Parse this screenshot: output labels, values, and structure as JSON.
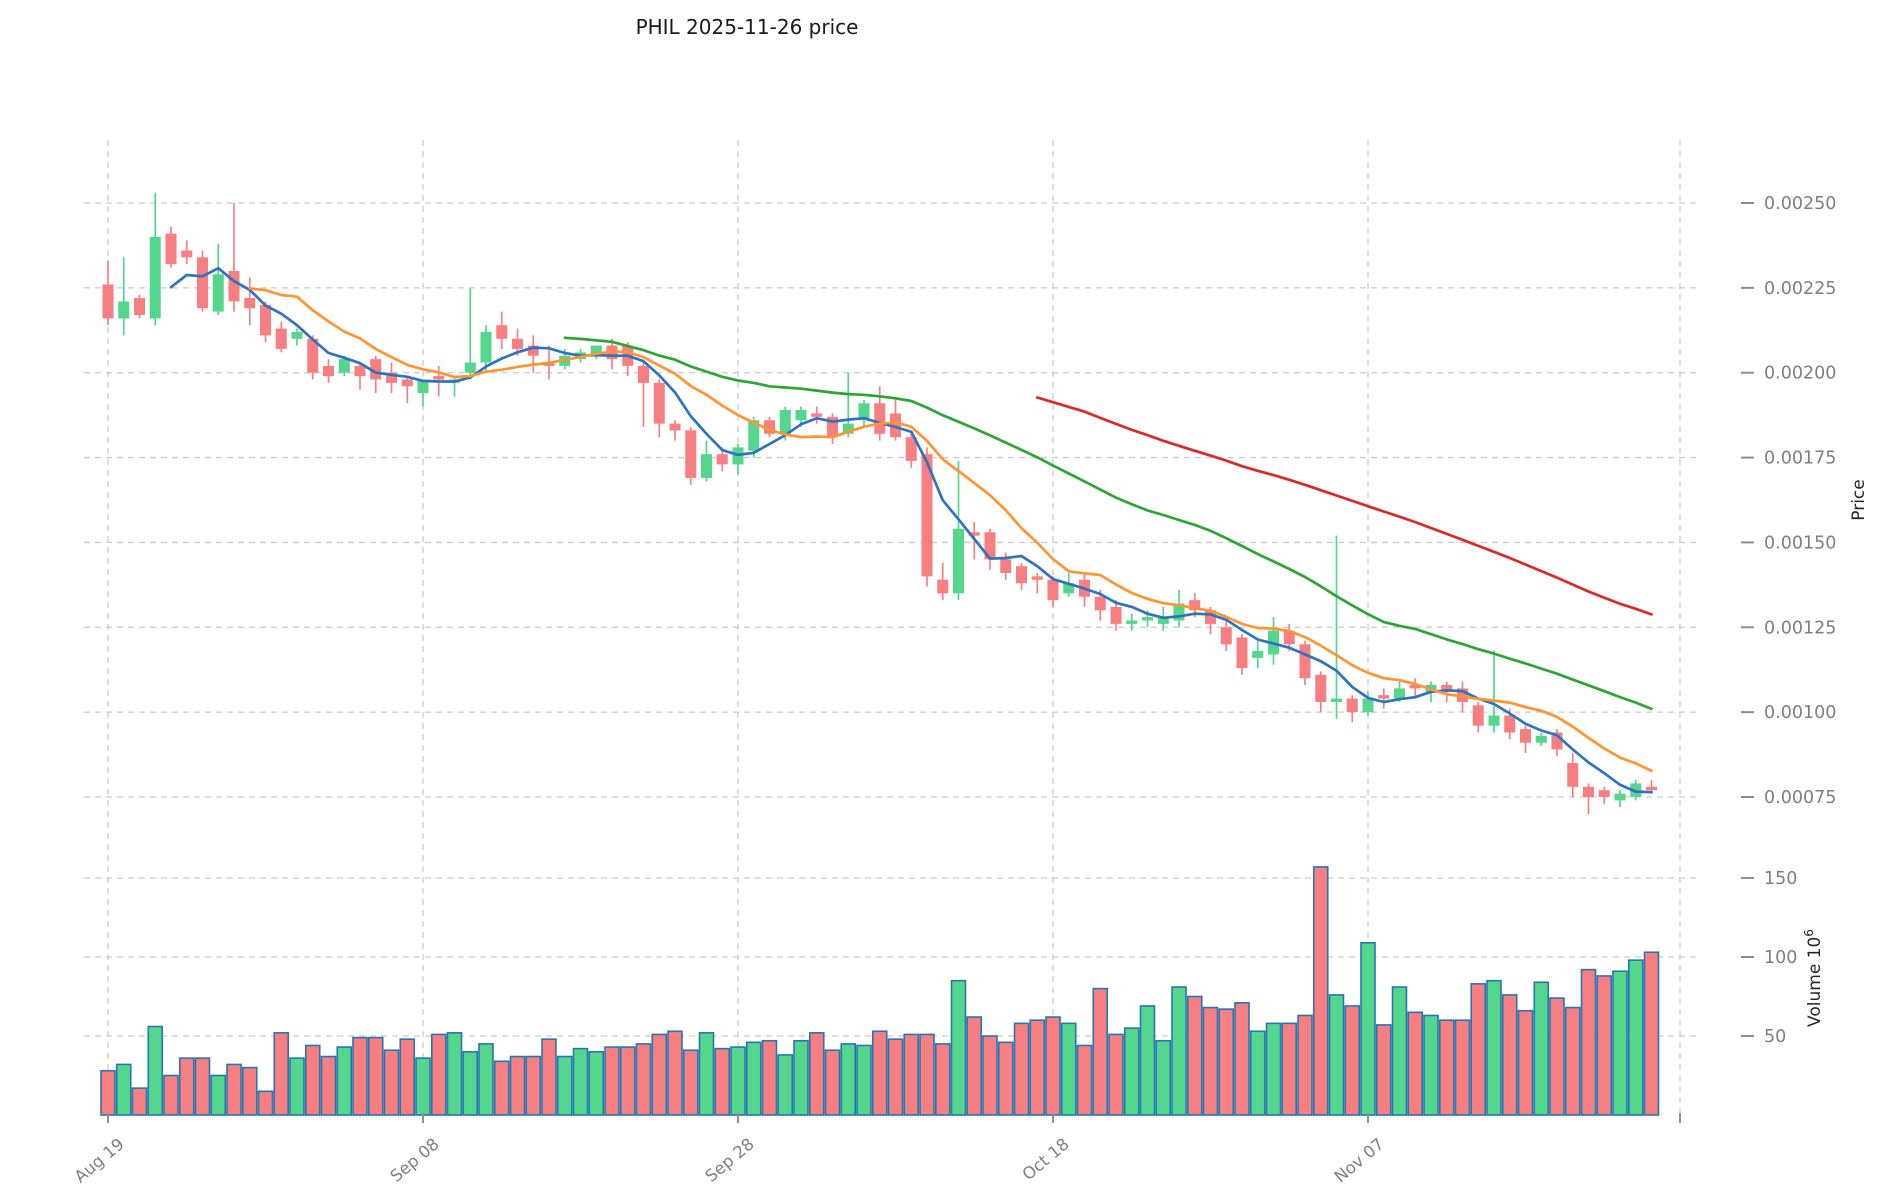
{
  "title": "PHIL  2025-11-26  price",
  "right_axis": {
    "price_label": "Price",
    "volume_label_base": "Volume 10",
    "volume_label_exp": "6",
    "price_tick_labels": [
      "0.00250",
      "0.00225",
      "0.00200",
      "0.00175",
      "0.00150",
      "0.00125",
      "0.00100",
      "0.00075"
    ],
    "volume_tick_labels": [
      "150",
      "100",
      "50"
    ]
  },
  "x_axis": {
    "tick_labels": [
      "Aug 19",
      "Sep 08",
      "Sep 28",
      "Oct 18",
      "Nov 07"
    ],
    "tick_indices": [
      0,
      20,
      40,
      60,
      80
    ]
  },
  "colors": {
    "up": "#54d68c",
    "down": "#f77e81",
    "volume_edge": "#2676b3",
    "grid": "#cccccc",
    "tick_text": "#7f7f7f",
    "tick_mark": "#8f8f8f",
    "sma5": "#2d73be",
    "sma10": "#ff9430",
    "sma30": "#2da535",
    "sma60": "#de2828"
  },
  "chart_data": {
    "type": "candlestick",
    "title": "PHIL 2025-11-26 price",
    "panels": [
      "price",
      "volume"
    ],
    "price_unit": 1e-05,
    "volume_unit_label": "10^6",
    "grid": true,
    "price_axis_ticks": [
      0.0025,
      0.00225,
      0.002,
      0.00175,
      0.0015,
      0.00125,
      0.001,
      0.00075
    ],
    "volume_axis_ticks_millions": [
      150,
      100,
      50
    ],
    "moving_averages": [
      {
        "name": "SMA5",
        "period": 5,
        "color_key": "sma5"
      },
      {
        "name": "SMA10",
        "period": 10,
        "color_key": "sma10"
      },
      {
        "name": "SMA30",
        "period": 30,
        "color_key": "sma30"
      },
      {
        "name": "SMA60",
        "period": 60,
        "color_key": "sma60"
      }
    ],
    "dates": [
      "2025-08-19",
      "2025-08-20",
      "2025-08-21",
      "2025-08-22",
      "2025-08-23",
      "2025-08-24",
      "2025-08-25",
      "2025-08-26",
      "2025-08-27",
      "2025-08-28",
      "2025-08-29",
      "2025-08-30",
      "2025-08-31",
      "2025-09-01",
      "2025-09-02",
      "2025-09-03",
      "2025-09-04",
      "2025-09-05",
      "2025-09-06",
      "2025-09-07",
      "2025-09-08",
      "2025-09-09",
      "2025-09-10",
      "2025-09-11",
      "2025-09-12",
      "2025-09-13",
      "2025-09-14",
      "2025-09-15",
      "2025-09-16",
      "2025-09-17",
      "2025-09-18",
      "2025-09-19",
      "2025-09-20",
      "2025-09-21",
      "2025-09-22",
      "2025-09-23",
      "2025-09-24",
      "2025-09-25",
      "2025-09-26",
      "2025-09-27",
      "2025-09-28",
      "2025-09-29",
      "2025-09-30",
      "2025-10-01",
      "2025-10-02",
      "2025-10-03",
      "2025-10-04",
      "2025-10-05",
      "2025-10-06",
      "2025-10-07",
      "2025-10-08",
      "2025-10-09",
      "2025-10-10",
      "2025-10-11",
      "2025-10-12",
      "2025-10-13",
      "2025-10-14",
      "2025-10-15",
      "2025-10-16",
      "2025-10-17",
      "2025-10-18",
      "2025-10-19",
      "2025-10-20",
      "2025-10-21",
      "2025-10-22",
      "2025-10-23",
      "2025-10-24",
      "2025-10-25",
      "2025-10-26",
      "2025-10-27",
      "2025-10-28",
      "2025-10-29",
      "2025-10-30",
      "2025-10-31",
      "2025-11-01",
      "2025-11-02",
      "2025-11-03",
      "2025-11-04",
      "2025-11-05",
      "2025-11-06",
      "2025-11-07",
      "2025-11-08",
      "2025-11-09",
      "2025-11-10",
      "2025-11-11",
      "2025-11-12",
      "2025-11-13",
      "2025-11-14",
      "2025-11-15",
      "2025-11-16",
      "2025-11-17",
      "2025-11-18",
      "2025-11-19",
      "2025-11-20",
      "2025-11-21",
      "2025-11-22",
      "2025-11-23",
      "2025-11-24",
      "2025-11-25"
    ],
    "open": [
      226,
      216,
      222,
      216,
      241,
      236,
      234,
      218,
      230,
      222,
      220,
      213,
      210,
      210,
      202,
      200,
      202,
      204,
      200,
      198,
      194,
      199,
      197,
      200,
      203,
      214,
      210,
      208,
      203,
      202,
      204,
      205,
      208,
      208,
      202,
      197,
      185,
      183,
      169,
      176,
      173,
      177,
      186,
      182,
      186,
      188,
      187,
      182,
      186,
      191,
      188,
      181,
      176,
      139,
      135,
      153,
      153,
      145,
      143,
      140,
      139,
      135,
      139,
      134,
      131,
      126,
      127,
      126,
      127,
      133,
      130,
      125,
      122,
      116,
      117,
      124,
      120,
      111,
      103,
      104,
      100,
      105,
      104,
      108,
      106,
      108,
      107,
      102,
      96,
      99,
      95,
      91,
      94,
      85,
      78,
      77,
      74,
      75,
      78
    ],
    "high": [
      233,
      234,
      223,
      253,
      243,
      239,
      236,
      238,
      250,
      228,
      221,
      215,
      213,
      211,
      204,
      205,
      203,
      205,
      203,
      199,
      198,
      202,
      199,
      225,
      214,
      218,
      213,
      211,
      208,
      207,
      207,
      208,
      210,
      209,
      203,
      198,
      186,
      184,
      180,
      178,
      179,
      187,
      187,
      190,
      190,
      190,
      188,
      200,
      192,
      196,
      192,
      182,
      178,
      144,
      174,
      156,
      154,
      147,
      144,
      141,
      140,
      141,
      141,
      136,
      133,
      129,
      130,
      131,
      136,
      135,
      131,
      127,
      123,
      121,
      128,
      126,
      121,
      112,
      152,
      105,
      106,
      107,
      109,
      110,
      109,
      109,
      109,
      103,
      118,
      101,
      96,
      94,
      95,
      88,
      79,
      78,
      77,
      80,
      80
    ],
    "low": [
      214,
      211,
      216,
      214,
      231,
      232,
      218,
      217,
      218,
      214,
      209,
      206,
      208,
      198,
      197,
      199,
      195,
      194,
      194,
      191,
      190,
      193,
      193,
      198,
      200,
      207,
      205,
      200,
      198,
      201,
      203,
      204,
      201,
      199,
      184,
      181,
      180,
      167,
      168,
      171,
      170,
      175,
      181,
      180,
      184,
      185,
      179,
      181,
      184,
      180,
      180,
      172,
      137,
      133,
      133,
      145,
      142,
      139,
      136,
      135,
      131,
      134,
      131,
      127,
      124,
      124,
      125,
      124,
      125,
      128,
      123,
      118,
      111,
      113,
      114,
      118,
      108,
      100,
      98,
      97,
      99,
      101,
      103,
      104,
      103,
      103,
      100,
      94,
      94,
      92,
      88,
      90,
      87,
      75,
      70,
      73,
      72,
      74,
      76
    ],
    "close": [
      216,
      221,
      217,
      240,
      232,
      234,
      219,
      229,
      221,
      219,
      211,
      207,
      212,
      200,
      199,
      204,
      199,
      198,
      197,
      196,
      198,
      198,
      198,
      203,
      212,
      210,
      207,
      205,
      202,
      205,
      206,
      208,
      204,
      202,
      197,
      185,
      183,
      169,
      176,
      173,
      178,
      186,
      182,
      189,
      189,
      187,
      181,
      185,
      191,
      182,
      181,
      174,
      140,
      135,
      154,
      152,
      145,
      141,
      138,
      139,
      133,
      138,
      134,
      130,
      126,
      127,
      128,
      128,
      132,
      130,
      126,
      120,
      113,
      118,
      124,
      120,
      110,
      103,
      104,
      100,
      104,
      104,
      107,
      107,
      108,
      106,
      103,
      96,
      99,
      94,
      91,
      93,
      89,
      78,
      75,
      75,
      76,
      79,
      77
    ],
    "volume_millions": [
      28,
      32,
      17,
      56,
      25,
      36,
      36,
      25,
      32,
      30,
      15,
      52,
      36,
      44,
      37,
      43,
      49,
      49,
      41,
      48,
      36,
      51,
      52,
      40,
      45,
      34,
      37,
      37,
      48,
      37,
      42,
      40,
      43,
      43,
      45,
      51,
      53,
      41,
      52,
      42,
      43,
      46,
      47,
      38,
      47,
      52,
      41,
      45,
      44,
      53,
      48,
      51,
      51,
      45,
      85,
      62,
      50,
      46,
      58,
      60,
      62,
      58,
      44,
      80,
      51,
      55,
      69,
      47,
      81,
      75,
      68,
      67,
      71,
      53,
      58,
      58,
      63,
      157,
      76,
      69,
      109,
      57,
      81,
      65,
      63,
      60,
      60,
      83,
      85,
      76,
      66,
      84,
      74,
      68,
      92,
      88,
      91,
      98,
      103
    ]
  }
}
